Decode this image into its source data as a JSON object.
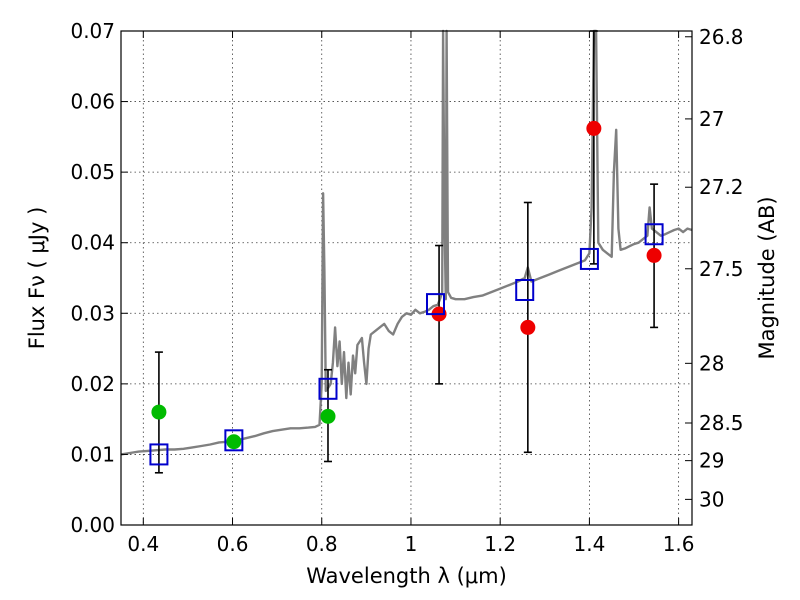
{
  "chart_data": {
    "type": "scatter",
    "title": "",
    "xlabel": "Wavelength  λ (μm)",
    "ylabel": "Flux  Fν ( μJy )",
    "ylabel_right": "Magnitude (AB)",
    "xlim": [
      0.35,
      1.63
    ],
    "ylim": [
      0,
      0.07
    ],
    "grid": true,
    "x_ticks": [
      {
        "v": 0.4,
        "label": "0.4"
      },
      {
        "v": 0.6,
        "label": "0.6"
      },
      {
        "v": 0.8,
        "label": "0.8"
      },
      {
        "v": 1.0,
        "label": "1"
      },
      {
        "v": 1.2,
        "label": "1.2"
      },
      {
        "v": 1.4,
        "label": "1.4"
      },
      {
        "v": 1.6,
        "label": "1.6"
      }
    ],
    "y_ticks": [
      {
        "v": 0.0,
        "label": "0.00"
      },
      {
        "v": 0.01,
        "label": "0.01"
      },
      {
        "v": 0.02,
        "label": "0.02"
      },
      {
        "v": 0.03,
        "label": "0.03"
      },
      {
        "v": 0.04,
        "label": "0.04"
      },
      {
        "v": 0.05,
        "label": "0.05"
      },
      {
        "v": 0.06,
        "label": "0.06"
      },
      {
        "v": 0.07,
        "label": "0.07"
      }
    ],
    "right_ticks": [
      {
        "v": 26.8,
        "label": "26.8"
      },
      {
        "v": 27,
        "label": "27"
      },
      {
        "v": 27.2,
        "label": "27.2"
      },
      {
        "v": 27.5,
        "label": "27.5"
      },
      {
        "v": 28,
        "label": "28"
      },
      {
        "v": 28.5,
        "label": "28.5"
      },
      {
        "v": 29,
        "label": "29"
      },
      {
        "v": 30,
        "label": "30"
      }
    ],
    "series": [
      {
        "kind": "spectrum",
        "color": "#808080",
        "points": [
          [
            0.35,
            0.01
          ],
          [
            0.37,
            0.0102
          ],
          [
            0.39,
            0.0104
          ],
          [
            0.41,
            0.0105
          ],
          [
            0.43,
            0.0106
          ],
          [
            0.45,
            0.0107
          ],
          [
            0.47,
            0.0107
          ],
          [
            0.49,
            0.0108
          ],
          [
            0.51,
            0.011
          ],
          [
            0.53,
            0.0112
          ],
          [
            0.55,
            0.0114
          ],
          [
            0.57,
            0.0117
          ],
          [
            0.59,
            0.0118
          ],
          [
            0.61,
            0.012
          ],
          [
            0.63,
            0.0123
          ],
          [
            0.65,
            0.0126
          ],
          [
            0.67,
            0.013
          ],
          [
            0.69,
            0.0133
          ],
          [
            0.71,
            0.0135
          ],
          [
            0.73,
            0.0137
          ],
          [
            0.75,
            0.0137
          ],
          [
            0.77,
            0.0138
          ],
          [
            0.785,
            0.0139
          ],
          [
            0.795,
            0.0142
          ],
          [
            0.8,
            0.02
          ],
          [
            0.803,
            0.047
          ],
          [
            0.806,
            0.036
          ],
          [
            0.809,
            0.019
          ],
          [
            0.815,
            0.0195
          ],
          [
            0.82,
            0.02
          ],
          [
            0.825,
            0.023
          ],
          [
            0.83,
            0.028
          ],
          [
            0.835,
            0.0225
          ],
          [
            0.84,
            0.026
          ],
          [
            0.845,
            0.02
          ],
          [
            0.85,
            0.0245
          ],
          [
            0.855,
            0.018
          ],
          [
            0.86,
            0.023
          ],
          [
            0.865,
            0.0185
          ],
          [
            0.87,
            0.024
          ],
          [
            0.875,
            0.0215
          ],
          [
            0.88,
            0.0255
          ],
          [
            0.885,
            0.026
          ],
          [
            0.89,
            0.0265
          ],
          [
            0.895,
            0.023
          ],
          [
            0.9,
            0.02
          ],
          [
            0.905,
            0.025
          ],
          [
            0.91,
            0.027
          ],
          [
            0.92,
            0.0275
          ],
          [
            0.93,
            0.028
          ],
          [
            0.94,
            0.0285
          ],
          [
            0.95,
            0.0275
          ],
          [
            0.96,
            0.027
          ],
          [
            0.97,
            0.0285
          ],
          [
            0.98,
            0.0295
          ],
          [
            0.99,
            0.03
          ],
          [
            1.0,
            0.0298
          ],
          [
            1.01,
            0.0305
          ],
          [
            1.02,
            0.03
          ],
          [
            1.03,
            0.0302
          ],
          [
            1.04,
            0.0305
          ],
          [
            1.05,
            0.031
          ],
          [
            1.06,
            0.0312
          ],
          [
            1.065,
            0.032
          ],
          [
            1.07,
            0.033
          ],
          [
            1.072,
            0.07
          ],
          [
            1.075,
            0.044
          ],
          [
            1.078,
            0.032
          ],
          [
            1.08,
            0.07
          ],
          [
            1.083,
            0.033
          ],
          [
            1.09,
            0.0322
          ],
          [
            1.1,
            0.032
          ],
          [
            1.12,
            0.032
          ],
          [
            1.14,
            0.0323
          ],
          [
            1.16,
            0.0325
          ],
          [
            1.18,
            0.033
          ],
          [
            1.2,
            0.0335
          ],
          [
            1.22,
            0.034
          ],
          [
            1.24,
            0.0345
          ],
          [
            1.255,
            0.035
          ],
          [
            1.262,
            0.0365
          ],
          [
            1.27,
            0.0345
          ],
          [
            1.29,
            0.035
          ],
          [
            1.31,
            0.0355
          ],
          [
            1.33,
            0.036
          ],
          [
            1.35,
            0.0365
          ],
          [
            1.37,
            0.037
          ],
          [
            1.39,
            0.0375
          ],
          [
            1.4,
            0.0385
          ],
          [
            1.405,
            0.045
          ],
          [
            1.41,
            0.07
          ],
          [
            1.415,
            0.07
          ],
          [
            1.42,
            0.04
          ],
          [
            1.43,
            0.039
          ],
          [
            1.44,
            0.0385
          ],
          [
            1.45,
            0.038
          ],
          [
            1.455,
            0.05
          ],
          [
            1.46,
            0.056
          ],
          [
            1.465,
            0.042
          ],
          [
            1.47,
            0.039
          ],
          [
            1.48,
            0.0392
          ],
          [
            1.49,
            0.0395
          ],
          [
            1.5,
            0.0398
          ],
          [
            1.51,
            0.04
          ],
          [
            1.52,
            0.0405
          ],
          [
            1.53,
            0.041
          ],
          [
            1.535,
            0.045
          ],
          [
            1.54,
            0.042
          ],
          [
            1.55,
            0.0415
          ],
          [
            1.56,
            0.041
          ],
          [
            1.57,
            0.0412
          ],
          [
            1.58,
            0.0415
          ],
          [
            1.59,
            0.0418
          ],
          [
            1.6,
            0.042
          ],
          [
            1.61,
            0.0415
          ],
          [
            1.62,
            0.042
          ],
          [
            1.63,
            0.0418
          ]
        ]
      },
      {
        "kind": "model-boxes",
        "color": "#0000cc",
        "points": [
          [
            0.435,
            0.01
          ],
          [
            0.603,
            0.012
          ],
          [
            0.814,
            0.0193
          ],
          [
            1.055,
            0.0313
          ],
          [
            1.255,
            0.0333
          ],
          [
            1.4,
            0.0377
          ],
          [
            1.545,
            0.0412
          ]
        ]
      },
      {
        "kind": "observed-green",
        "color": "#00bb00",
        "points": [
          {
            "x": 0.435,
            "y": 0.016,
            "lo": 0.0074,
            "hi": 0.0245
          },
          {
            "x": 0.603,
            "y": 0.0118
          },
          {
            "x": 0.814,
            "y": 0.0154,
            "lo": 0.009,
            "hi": 0.022
          }
        ]
      },
      {
        "kind": "observed-red",
        "color": "#ee0000",
        "points": [
          {
            "x": 1.063,
            "y": 0.0299,
            "lo": 0.02,
            "hi": 0.0396
          },
          {
            "x": 1.262,
            "y": 0.028,
            "lo": 0.0103,
            "hi": 0.0457
          },
          {
            "x": 1.41,
            "y": 0.0562,
            "lo": 0.037,
            "hi": 0.07
          },
          {
            "x": 1.545,
            "y": 0.0382,
            "lo": 0.028,
            "hi": 0.0483
          }
        ]
      }
    ]
  }
}
